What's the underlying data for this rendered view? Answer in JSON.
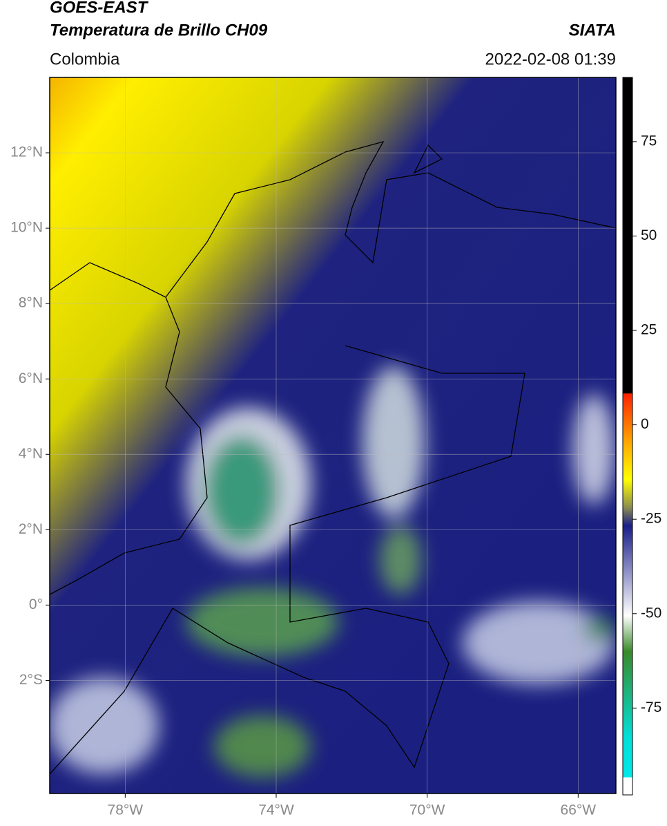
{
  "header": {
    "satellite": "GOES-EAST",
    "product": "Temperatura de Brillo CH09",
    "source": "SIATA",
    "region": "Colombia",
    "datetime": "2022-02-08 01:39"
  },
  "map": {
    "xlim": [
      -80,
      -65
    ],
    "ylim": [
      -5,
      14
    ],
    "xticks": [
      {
        "value": -78,
        "label": "78°W"
      },
      {
        "value": -74,
        "label": "74°W"
      },
      {
        "value": -70,
        "label": "70°W"
      },
      {
        "value": -66,
        "label": "66°W"
      }
    ],
    "yticks": [
      {
        "value": 12,
        "label": "12°N"
      },
      {
        "value": 10,
        "label": "10°N"
      },
      {
        "value": 8,
        "label": "8°N"
      },
      {
        "value": 6,
        "label": "6°N"
      },
      {
        "value": 4,
        "label": "4°N"
      },
      {
        "value": 2,
        "label": "2°N"
      },
      {
        "value": 0,
        "label": "0°"
      },
      {
        "value": -2,
        "label": "2°S"
      }
    ]
  },
  "colorbar": {
    "lim": [
      -98,
      92
    ],
    "ticks": [
      75,
      50,
      25,
      0,
      -25,
      -50,
      -75
    ]
  }
}
